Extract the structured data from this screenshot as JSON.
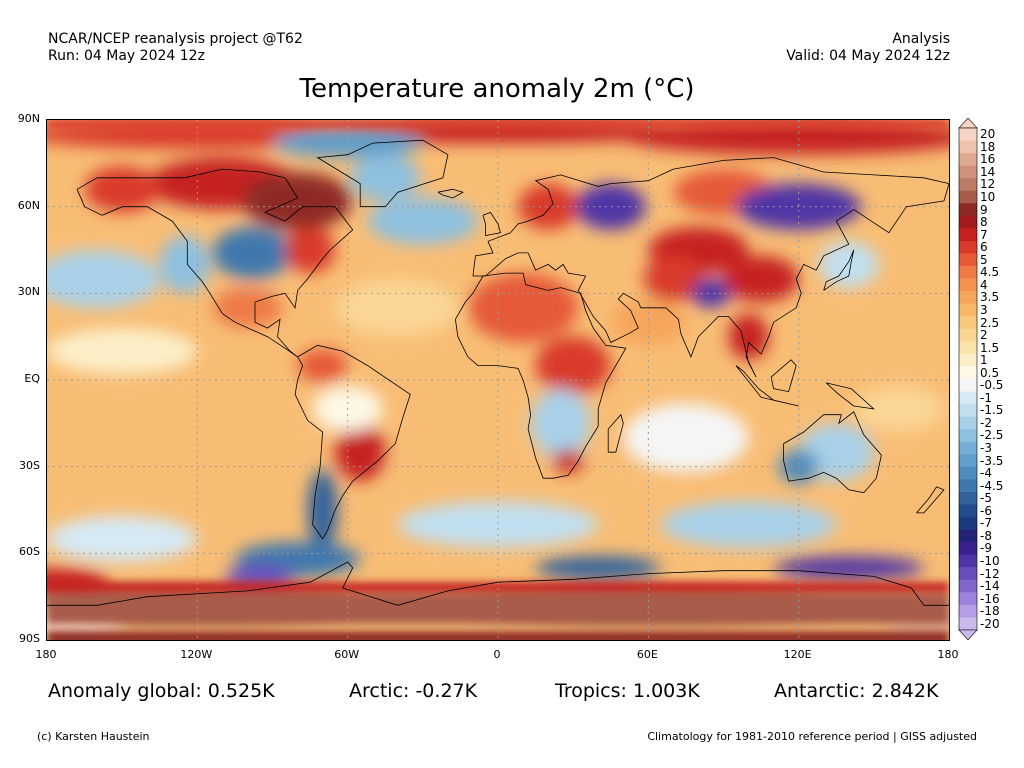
{
  "header": {
    "left_line1": "NCAR/NCEP reanalysis project @T62",
    "left_line2": "Run: 04 May 2024 12z",
    "right_line1": "Analysis",
    "right_line2": "Valid: 04 May 2024 12z"
  },
  "title": "Temperature anomaly 2m (°C)",
  "axes": {
    "lat_labels": [
      "90N",
      "60N",
      "30N",
      "EQ",
      "30S",
      "60S",
      "90S"
    ],
    "lon_labels": [
      "180",
      "120W",
      "60W",
      "0",
      "60E",
      "120E",
      "180"
    ]
  },
  "colorbar": {
    "labels": [
      "20",
      "18",
      "16",
      "14",
      "12",
      "10",
      "9",
      "8",
      "7",
      "6",
      "5",
      "4.5",
      "4",
      "3.5",
      "3",
      "2.5",
      "2",
      "1.5",
      "1",
      "0.5",
      "-0.5",
      "-1",
      "-1.5",
      "-2",
      "-2.5",
      "-3",
      "-3.5",
      "-4",
      "-4.5",
      "-5",
      "-6",
      "-7",
      "-8",
      "-9",
      "-10",
      "-12",
      "-14",
      "-16",
      "-18",
      "-20"
    ],
    "colors": [
      "#f8d4c4",
      "#eec2ad",
      "#e0aa92",
      "#d0917a",
      "#bd7a64",
      "#a85c4a",
      "#8e2a26",
      "#a61b1b",
      "#c62020",
      "#d93a2a",
      "#e65a38",
      "#ee7a48",
      "#f3914e",
      "#f6a65c",
      "#f8b86a",
      "#f9c77e",
      "#fad694",
      "#fbe3ac",
      "#fcefc8",
      "#fdf8e6",
      "#f5f5f5",
      "#d6e9f5",
      "#c1dff0",
      "#a8d0e8",
      "#8ec0df",
      "#76afd5",
      "#619ec9",
      "#4f8cbd",
      "#3f78ae",
      "#31629c",
      "#234c8c",
      "#1c3a7f",
      "#23237a",
      "#3b1f8c",
      "#4f34a6",
      "#6a4dbd",
      "#8466cf",
      "#9e82dd",
      "#b59ee6",
      "#cbb9ee"
    ]
  },
  "stats": {
    "global": "Anomaly global: 0.525K",
    "arctic": "Arctic: -0.27K",
    "tropics": "Tropics: 1.003K",
    "antarctic": "Antarctic: 2.842K"
  },
  "footer": {
    "left": "(c) Karsten Haustein",
    "right": "Climatology for 1981-2010 reference period | GISS adjusted"
  },
  "map": {
    "ocean_color": "#f9c77e",
    "coastline_color": "#000000",
    "grid_color": "#9a9a9a"
  }
}
